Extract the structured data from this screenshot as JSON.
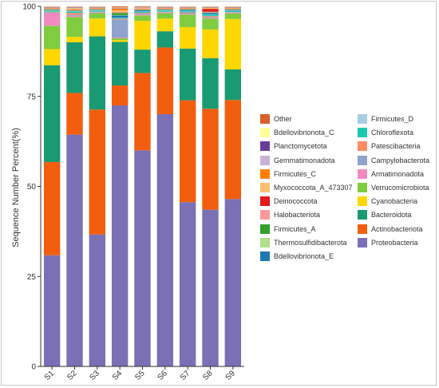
{
  "chart_data": {
    "type": "bar",
    "stacked": true,
    "title": "",
    "xlabel": "",
    "ylabel": "Sequence Number Percent(%)",
    "ylim": [
      0,
      100
    ],
    "yticks": [
      0,
      25,
      50,
      75,
      100
    ],
    "categories": [
      "S1",
      "S2",
      "S3",
      "S4",
      "S5",
      "S6",
      "S7",
      "S8",
      "S9"
    ],
    "legend_position": "right",
    "series": [
      {
        "name": "Proteobacteria",
        "color": "#7b6fb5",
        "values": [
          31,
          64,
          37,
          72,
          60,
          70,
          46,
          43.5,
          46.5
        ]
      },
      {
        "name": "Actinobacteriota",
        "color": "#f35e0e",
        "values": [
          26,
          11.5,
          35,
          5.5,
          21.5,
          18.5,
          28.5,
          28,
          27.5
        ]
      },
      {
        "name": "Bacteroidota",
        "color": "#1a9a72",
        "values": [
          27,
          14,
          20.5,
          12,
          6.5,
          4.5,
          14.5,
          14,
          8.5
        ]
      },
      {
        "name": "Cyanobacteria",
        "color": "#ffd700",
        "values": [
          4.5,
          1.5,
          5,
          0.5,
          8,
          3.5,
          6,
          8,
          14
        ]
      },
      {
        "name": "Verrucomicrobiota",
        "color": "#7fcc3f",
        "values": [
          6.5,
          5.5,
          1.5,
          0.5,
          1.5,
          1.5,
          3.5,
          3,
          1.5
        ]
      },
      {
        "name": "Armatimonadota",
        "color": "#f28ac0",
        "values": [
          3.5,
          0.3,
          0.2,
          0.2,
          0.3,
          0.2,
          0.2,
          0.2,
          0.2
        ]
      },
      {
        "name": "Campylobacterota",
        "color": "#8fa3cc",
        "values": [
          0.2,
          0.3,
          0.1,
          5,
          0.2,
          0.1,
          0.2,
          0.2,
          0.1
        ]
      },
      {
        "name": "Patescibacteria",
        "color": "#fc8d62",
        "values": [
          0.2,
          0.5,
          0.1,
          0.2,
          0.2,
          0.1,
          0.2,
          0.3,
          0.1
        ]
      },
      {
        "name": "Chloroflexota",
        "color": "#1bc9b0",
        "values": [
          0.3,
          0.3,
          0.3,
          0.2,
          0.3,
          0.3,
          0.3,
          0.4,
          0.3
        ]
      },
      {
        "name": "Firmicutes_D",
        "color": "#a6cee3",
        "values": [
          0.1,
          0.1,
          0.1,
          0.1,
          0.1,
          0.1,
          0.1,
          0.1,
          0.1
        ]
      },
      {
        "name": "Bdellovibrionota_E",
        "color": "#1f78b4",
        "values": [
          0.1,
          0.1,
          0.1,
          0.6,
          0.3,
          0.1,
          0.3,
          0.4,
          0.2
        ]
      },
      {
        "name": "Thermosulfidibacterota",
        "color": "#b2df8a",
        "values": [
          0.1,
          0.1,
          0.1,
          0.1,
          0.1,
          0.1,
          0.1,
          0.1,
          0.1
        ]
      },
      {
        "name": "Firmicutes_A",
        "color": "#33a02c",
        "values": [
          0.1,
          0.1,
          0.1,
          0.6,
          0.1,
          0.1,
          0.1,
          0.1,
          0.1
        ]
      },
      {
        "name": "Halobacteriota",
        "color": "#fb9a99",
        "values": [
          0.1,
          0.1,
          0.1,
          0.1,
          0.1,
          0.1,
          0.1,
          0.1,
          0.1
        ]
      },
      {
        "name": "Deinococcota",
        "color": "#e31a1c",
        "values": [
          0.1,
          0.1,
          0.1,
          0.1,
          0.1,
          0.1,
          0.1,
          0.8,
          0.1
        ]
      },
      {
        "name": "Myxococcota_A_473307",
        "color": "#fdbf6f",
        "values": [
          0.1,
          0.3,
          0.1,
          0.5,
          0.1,
          0.1,
          0.1,
          0.2,
          0.1
        ]
      },
      {
        "name": "Firmicutes_C",
        "color": "#ff7f00",
        "values": [
          0.1,
          0.1,
          0.1,
          0.5,
          0.1,
          0.1,
          0.1,
          0.1,
          0.1
        ]
      },
      {
        "name": "Gemmatimonadota",
        "color": "#cab2d6",
        "values": [
          0.1,
          0.2,
          0.1,
          0.1,
          0.1,
          0.1,
          0.1,
          0.1,
          0.1
        ]
      },
      {
        "name": "Planctomycetota",
        "color": "#6a3d9a",
        "values": [
          0.1,
          0.1,
          0.1,
          0.1,
          0.1,
          0.1,
          0.1,
          0.1,
          0.1
        ]
      },
      {
        "name": "Bdellovibrionota_C",
        "color": "#ffff99",
        "values": [
          0.1,
          0.1,
          0.1,
          0.1,
          0.1,
          0.1,
          0.1,
          0.1,
          0.1
        ]
      },
      {
        "name": "Other",
        "color": "#d95f2b",
        "values": [
          0.1,
          0.1,
          0.1,
          0.3,
          0.2,
          0.1,
          0.1,
          0.1,
          0.1
        ]
      }
    ],
    "legend_columns": [
      [
        "Other",
        "Bdellovibrionota_C",
        "Planctomycetota",
        "Gemmatimonadota",
        "Firmicutes_C",
        "Myxococcota_A_473307",
        "Deinococcota",
        "Halobacteriota",
        "Firmicutes_A",
        "Thermosulfidibacterota",
        "Bdellovibrionota_E"
      ],
      [
        "Firmicutes_D",
        "Chloroflexota",
        "Patescibacteria",
        "Campylobacterota",
        "Armatimonadota",
        "Verrucomicrobiota",
        "Cyanobacteria",
        "Bacteroidota",
        "Actinobacteriota",
        "Proteobacteria"
      ]
    ]
  }
}
